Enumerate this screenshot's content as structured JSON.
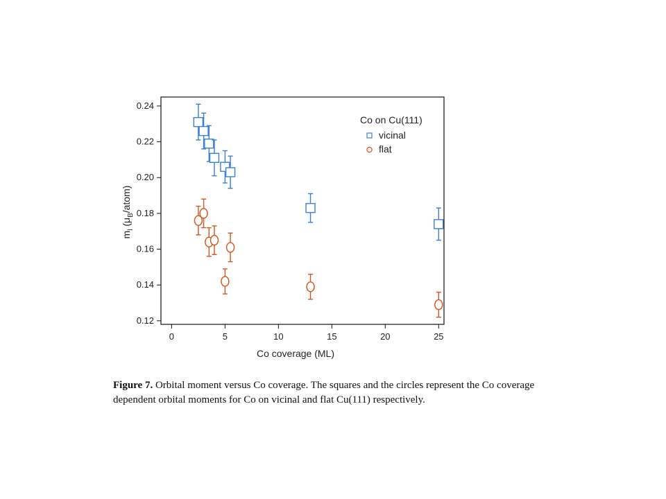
{
  "chart_data": {
    "type": "scatter",
    "xlabel": "Co coverage (ML)",
    "ylabel": "m",
    "ylabel_sub": "l",
    "ylabel_unit_pre": " (μ",
    "ylabel_unit_sub": "B",
    "ylabel_unit_post": "/atom)",
    "xlim": [
      -1,
      25.5
    ],
    "ylim": [
      0.118,
      0.245
    ],
    "x_ticks": [
      0,
      5,
      10,
      15,
      20,
      25
    ],
    "y_ticks": [
      0.12,
      0.14,
      0.16,
      0.18,
      0.2,
      0.22,
      0.24
    ],
    "y_tick_labels": [
      "0.12",
      "0.14",
      "0.16",
      "0.18",
      "0.20",
      "0.22",
      "0.24"
    ],
    "legend": {
      "title": "Co on Cu(111)",
      "position": "top-right"
    },
    "series": [
      {
        "name": "vicinal",
        "marker": "square",
        "color": "#3a7fd5",
        "x": [
          2.5,
          3.0,
          3.5,
          4.0,
          5.0,
          5.5,
          13.0,
          25.0
        ],
        "y": [
          0.231,
          0.226,
          0.219,
          0.211,
          0.206,
          0.203,
          0.183,
          0.174
        ],
        "err": [
          0.01,
          0.01,
          0.01,
          0.01,
          0.009,
          0.009,
          0.008,
          0.009
        ]
      },
      {
        "name": "flat",
        "marker": "circle",
        "color": "#d6541e",
        "x": [
          2.5,
          3.0,
          3.5,
          4.0,
          5.0,
          5.5,
          13.0,
          25.0
        ],
        "y": [
          0.176,
          0.18,
          0.164,
          0.165,
          0.142,
          0.161,
          0.139,
          0.129
        ],
        "err": [
          0.008,
          0.008,
          0.008,
          0.008,
          0.007,
          0.008,
          0.007,
          0.007
        ]
      }
    ]
  },
  "caption": {
    "label": "Figure 7.",
    "text": "  Orbital moment versus Co coverage.  The squares and the circles represent the Co coverage dependent orbital moments for Co on vicinal and flat Cu(111) respectively."
  }
}
